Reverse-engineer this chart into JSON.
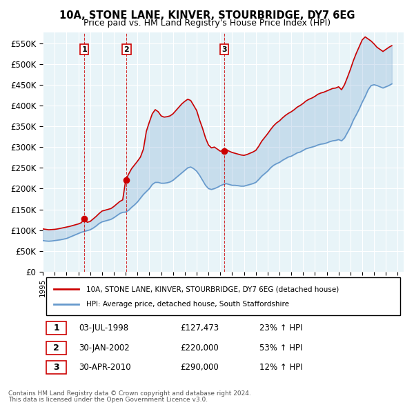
{
  "title": "10A, STONE LANE, KINVER, STOURBRIDGE, DY7 6EG",
  "subtitle": "Price paid vs. HM Land Registry's House Price Index (HPI)",
  "ylabel_ticks": [
    0,
    50000,
    100000,
    150000,
    200000,
    250000,
    300000,
    350000,
    400000,
    450000,
    500000,
    550000
  ],
  "ylabel_labels": [
    "£0",
    "£50K",
    "£100K",
    "£150K",
    "£200K",
    "£250K",
    "£300K",
    "£350K",
    "£400K",
    "£450K",
    "£500K",
    "£550K"
  ],
  "ylim": [
    0,
    575000
  ],
  "xlim_start": 1995.0,
  "xlim_end": 2025.5,
  "background_color": "#ffffff",
  "plot_bg_color": "#e8f4f8",
  "grid_color": "#ffffff",
  "red_line_color": "#cc0000",
  "blue_line_color": "#6699cc",
  "sale_events": [
    {
      "label": "1",
      "date_num": 1998.5,
      "price": 127473,
      "hpi_pct": "23% ↑ HPI",
      "date_str": "03-JUL-1998",
      "price_str": "£127,473"
    },
    {
      "label": "2",
      "date_num": 2002.08,
      "price": 220000,
      "hpi_pct": "53% ↑ HPI",
      "date_str": "30-JAN-2002",
      "price_str": "£220,000"
    },
    {
      "label": "3",
      "date_num": 2010.33,
      "price": 290000,
      "hpi_pct": "12% ↑ HPI",
      "date_str": "30-APR-2010",
      "price_str": "£290,000"
    }
  ],
  "legend_line1": "10A, STONE LANE, KINVER, STOURBRIDGE, DY7 6EG (detached house)",
  "legend_line2": "HPI: Average price, detached house, South Staffordshire",
  "footer1": "Contains HM Land Registry data © Crown copyright and database right 2024.",
  "footer2": "This data is licensed under the Open Government Licence v3.0.",
  "hpi_data_x": [
    1995.0,
    1995.25,
    1995.5,
    1995.75,
    1996.0,
    1996.25,
    1996.5,
    1996.75,
    1997.0,
    1997.25,
    1997.5,
    1997.75,
    1998.0,
    1998.25,
    1998.5,
    1998.75,
    1999.0,
    1999.25,
    1999.5,
    1999.75,
    2000.0,
    2000.25,
    2000.5,
    2000.75,
    2001.0,
    2001.25,
    2001.5,
    2001.75,
    2002.0,
    2002.25,
    2002.5,
    2002.75,
    2003.0,
    2003.25,
    2003.5,
    2003.75,
    2004.0,
    2004.25,
    2004.5,
    2004.75,
    2005.0,
    2005.25,
    2005.5,
    2005.75,
    2006.0,
    2006.25,
    2006.5,
    2006.75,
    2007.0,
    2007.25,
    2007.5,
    2007.75,
    2008.0,
    2008.25,
    2008.5,
    2008.75,
    2009.0,
    2009.25,
    2009.5,
    2009.75,
    2010.0,
    2010.25,
    2010.5,
    2010.75,
    2011.0,
    2011.25,
    2011.5,
    2011.75,
    2012.0,
    2012.25,
    2012.5,
    2012.75,
    2013.0,
    2013.25,
    2013.5,
    2013.75,
    2014.0,
    2014.25,
    2014.5,
    2014.75,
    2015.0,
    2015.25,
    2015.5,
    2015.75,
    2016.0,
    2016.25,
    2016.5,
    2016.75,
    2017.0,
    2017.25,
    2017.5,
    2017.75,
    2018.0,
    2018.25,
    2018.5,
    2018.75,
    2019.0,
    2019.25,
    2019.5,
    2019.75,
    2020.0,
    2020.25,
    2020.5,
    2020.75,
    2021.0,
    2021.25,
    2021.5,
    2021.75,
    2022.0,
    2022.25,
    2022.5,
    2022.75,
    2023.0,
    2023.25,
    2023.5,
    2023.75,
    2024.0,
    2024.25,
    2024.5
  ],
  "hpi_data_y": [
    75000,
    74000,
    73500,
    74000,
    75000,
    76000,
    77000,
    78500,
    80000,
    83000,
    86000,
    89000,
    92000,
    95000,
    97000,
    99000,
    101000,
    105000,
    110000,
    116000,
    120000,
    122000,
    124000,
    126000,
    130000,
    135000,
    140000,
    143000,
    143500,
    148000,
    155000,
    161000,
    168000,
    177000,
    186000,
    193000,
    200000,
    210000,
    215000,
    215000,
    213000,
    213000,
    214000,
    216000,
    220000,
    226000,
    232000,
    238000,
    244000,
    250000,
    252000,
    248000,
    242000,
    232000,
    220000,
    208000,
    200000,
    198000,
    200000,
    203000,
    207000,
    210000,
    212000,
    210000,
    208000,
    208000,
    207000,
    206000,
    206000,
    208000,
    210000,
    212000,
    215000,
    222000,
    230000,
    236000,
    242000,
    250000,
    256000,
    260000,
    263000,
    268000,
    272000,
    276000,
    278000,
    282000,
    286000,
    288000,
    292000,
    296000,
    298000,
    300000,
    302000,
    305000,
    307000,
    308000,
    310000,
    313000,
    315000,
    316000,
    318000,
    315000,
    322000,
    335000,
    348000,
    365000,
    378000,
    392000,
    408000,
    422000,
    438000,
    448000,
    450000,
    448000,
    445000,
    442000,
    445000,
    448000,
    452000
  ],
  "red_data_x": [
    1995.0,
    1995.25,
    1995.5,
    1995.75,
    1996.0,
    1996.25,
    1996.5,
    1996.75,
    1997.0,
    1997.25,
    1997.5,
    1997.75,
    1998.0,
    1998.25,
    1998.5,
    1998.75,
    1999.0,
    1999.25,
    1999.5,
    1999.75,
    2000.0,
    2000.25,
    2000.5,
    2000.75,
    2001.0,
    2001.25,
    2001.5,
    2001.75,
    2002.0,
    2002.25,
    2002.5,
    2002.75,
    2003.0,
    2003.25,
    2003.5,
    2003.75,
    2004.0,
    2004.25,
    2004.5,
    2004.75,
    2005.0,
    2005.25,
    2005.5,
    2005.75,
    2006.0,
    2006.25,
    2006.5,
    2006.75,
    2007.0,
    2007.25,
    2007.5,
    2007.75,
    2008.0,
    2008.25,
    2008.5,
    2008.75,
    2009.0,
    2009.25,
    2009.5,
    2009.75,
    2010.0,
    2010.25,
    2010.5,
    2010.75,
    2011.0,
    2011.25,
    2011.5,
    2011.75,
    2012.0,
    2012.25,
    2012.5,
    2012.75,
    2013.0,
    2013.25,
    2013.5,
    2013.75,
    2014.0,
    2014.25,
    2014.5,
    2014.75,
    2015.0,
    2015.25,
    2015.5,
    2015.75,
    2016.0,
    2016.25,
    2016.5,
    2016.75,
    2017.0,
    2017.25,
    2017.5,
    2017.75,
    2018.0,
    2018.25,
    2018.5,
    2018.75,
    2019.0,
    2019.25,
    2019.5,
    2019.75,
    2020.0,
    2020.25,
    2020.5,
    2020.75,
    2021.0,
    2021.25,
    2021.5,
    2021.75,
    2022.0,
    2022.25,
    2022.5,
    2022.75,
    2023.0,
    2023.25,
    2023.5,
    2023.75,
    2024.0,
    2024.25,
    2024.5
  ],
  "red_data_y": [
    103000,
    102000,
    101000,
    101500,
    102000,
    103000,
    104500,
    106000,
    107500,
    109000,
    111000,
    113000,
    115000,
    118000,
    127473,
    119000,
    121000,
    127000,
    133000,
    140000,
    146000,
    148000,
    150000,
    152000,
    157000,
    163000,
    169000,
    173000,
    220000,
    235000,
    248000,
    257000,
    266000,
    276000,
    295000,
    338000,
    360000,
    380000,
    390000,
    385000,
    375000,
    372000,
    373000,
    375000,
    380000,
    388000,
    396000,
    404000,
    410000,
    415000,
    412000,
    400000,
    388000,
    365000,
    345000,
    322000,
    305000,
    298000,
    300000,
    295000,
    290000,
    292000,
    294000,
    290000,
    287000,
    285000,
    283000,
    281000,
    280000,
    282000,
    285000,
    288000,
    292000,
    302000,
    314000,
    323000,
    332000,
    342000,
    351000,
    358000,
    363000,
    370000,
    376000,
    381000,
    385000,
    390000,
    396000,
    400000,
    405000,
    411000,
    415000,
    418000,
    422000,
    427000,
    430000,
    432000,
    435000,
    438000,
    441000,
    442000,
    445000,
    438000,
    450000,
    468000,
    487000,
    508000,
    526000,
    542000,
    558000,
    565000,
    560000,
    555000,
    548000,
    540000,
    535000,
    530000,
    535000,
    540000,
    544000
  ]
}
